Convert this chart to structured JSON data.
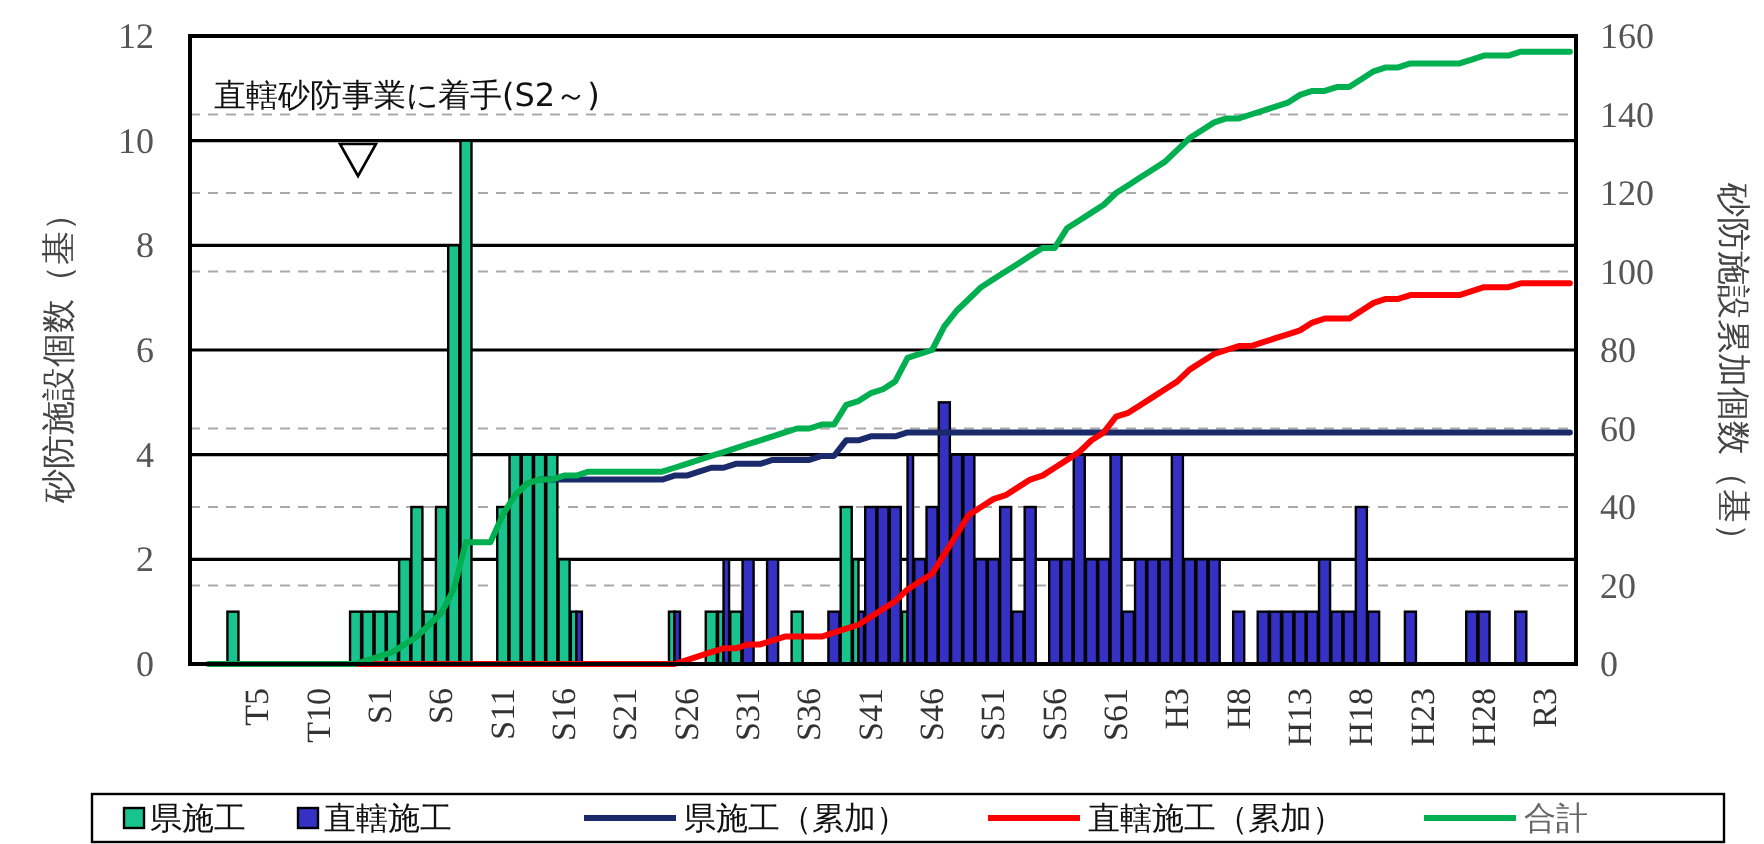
{
  "chart_data": {
    "type": "bar",
    "categories": [
      null,
      null,
      null,
      null,
      null,
      "T5",
      null,
      null,
      null,
      null,
      "T10",
      null,
      null,
      null,
      null,
      "S1",
      null,
      null,
      null,
      null,
      "S6",
      null,
      null,
      null,
      null,
      "S11",
      null,
      null,
      null,
      null,
      "S16",
      null,
      null,
      null,
      null,
      "S21",
      null,
      null,
      null,
      null,
      "S26",
      null,
      null,
      null,
      null,
      "S31",
      null,
      null,
      null,
      null,
      "S36",
      null,
      null,
      null,
      null,
      "S41",
      null,
      null,
      null,
      null,
      "S46",
      null,
      null,
      null,
      null,
      "S51",
      null,
      null,
      null,
      null,
      "S56",
      null,
      null,
      null,
      null,
      "S61",
      null,
      null,
      null,
      null,
      "H3",
      null,
      null,
      null,
      null,
      "H8",
      null,
      null,
      null,
      null,
      "H13",
      null,
      null,
      null,
      null,
      "H18",
      null,
      null,
      null,
      null,
      "H23",
      null,
      null,
      null,
      null,
      "H28",
      null,
      null,
      null,
      null,
      "R3",
      null,
      null
    ],
    "ylim": [
      0,
      12
    ],
    "yticks": [
      0,
      2,
      4,
      6,
      8,
      10,
      12
    ],
    "y2lim": [
      0,
      160
    ],
    "y2ticks": [
      0,
      20,
      40,
      60,
      80,
      100,
      120,
      140,
      160
    ],
    "ylabel": "砂防施設個数（基）",
    "y2label": "砂防施設累加個数（基）",
    "grid": true,
    "legend": "bottom",
    "annotations": [
      "直轄砂防事業に着手(S2～)"
    ],
    "series": [
      {
        "name": "県施工",
        "color": "#19c38e",
        "values": [
          0,
          0,
          0,
          1,
          0,
          0,
          0,
          0,
          0,
          0,
          0,
          0,
          0,
          1,
          1,
          1,
          1,
          2,
          3,
          1,
          3,
          8,
          10,
          0,
          0,
          3,
          4,
          4,
          4,
          4,
          2,
          1,
          0,
          0,
          0,
          0,
          0,
          0,
          0,
          1,
          0,
          0,
          1,
          1,
          1,
          0,
          0,
          0,
          0,
          1,
          0,
          0,
          0,
          3,
          2,
          0,
          0,
          0,
          1,
          0,
          0,
          0,
          0,
          0,
          0,
          0,
          0,
          0,
          0,
          0,
          0,
          0,
          0,
          0,
          0,
          0,
          0,
          0,
          0,
          0,
          0,
          0,
          0,
          0,
          0,
          0,
          0,
          0,
          0,
          0,
          0,
          0,
          0,
          0,
          0,
          0,
          0,
          0,
          0,
          0,
          0,
          0,
          0,
          0,
          0,
          0,
          0,
          0,
          0,
          0,
          0,
          0,
          0
        ]
      },
      {
        "name": "直轄施工",
        "color": "#3431c4",
        "values": [
          0,
          0,
          0,
          0,
          0,
          0,
          0,
          0,
          0,
          0,
          0,
          0,
          0,
          0,
          0,
          0,
          0,
          0,
          0,
          0,
          0,
          0,
          0,
          0,
          0,
          0,
          0,
          0,
          0,
          0,
          0,
          1,
          0,
          0,
          0,
          0,
          0,
          0,
          0,
          1,
          0,
          0,
          0,
          2,
          0,
          2,
          0,
          2,
          0,
          0,
          0,
          0,
          1,
          0,
          1,
          3,
          3,
          3,
          4,
          2,
          3,
          5,
          4,
          4,
          2,
          2,
          3,
          1,
          3,
          0,
          2,
          2,
          4,
          2,
          2,
          4,
          1,
          2,
          2,
          2,
          4,
          2,
          2,
          2,
          0,
          1,
          0,
          1,
          1,
          1,
          1,
          1,
          2,
          1,
          1,
          3,
          1,
          0,
          0,
          1,
          0,
          0,
          0,
          0,
          1,
          1,
          0,
          0,
          1,
          0,
          0,
          0,
          0
        ]
      },
      {
        "name": "県施工（累加）",
        "type": "line",
        "axis": "y2",
        "color": "#1b2a6b",
        "values": [
          null,
          null,
          null,
          null,
          null,
          null,
          null,
          null,
          null,
          null,
          null,
          null,
          null,
          null,
          null,
          null,
          null,
          null,
          null,
          null,
          null,
          null,
          null,
          null,
          null,
          null,
          null,
          null,
          47,
          47,
          47,
          47,
          47,
          47,
          47,
          47,
          47,
          47,
          47,
          48,
          48,
          49,
          50,
          50,
          51,
          51,
          51,
          52,
          52,
          52,
          52,
          53,
          53,
          57,
          57,
          58,
          58,
          58,
          59,
          59,
          59,
          59,
          59,
          59,
          59,
          59,
          59,
          59,
          59,
          59,
          59,
          59,
          59,
          59,
          59,
          59,
          59,
          59,
          59,
          59,
          59,
          59,
          59,
          59,
          59,
          59,
          59,
          59,
          59,
          59,
          59,
          59,
          59,
          59,
          59,
          59,
          59,
          59,
          59,
          59,
          59,
          59,
          59,
          59,
          59,
          59,
          59,
          59,
          59,
          59,
          59,
          59,
          59
        ]
      },
      {
        "name": "直轄施工（累加）",
        "type": "line",
        "axis": "y2",
        "color": "#ff0000",
        "values": [
          null,
          null,
          null,
          null,
          null,
          null,
          null,
          null,
          null,
          null,
          null,
          null,
          0,
          0,
          0,
          0,
          0,
          0,
          0,
          0,
          0,
          0,
          0,
          0,
          0,
          0,
          0,
          0,
          0,
          0,
          0,
          0,
          0,
          0,
          0,
          0,
          0,
          0,
          0,
          0,
          1,
          2,
          3,
          4,
          4,
          5,
          5,
          6,
          7,
          7,
          7,
          7,
          8,
          9,
          10,
          12,
          14,
          16,
          19,
          21,
          23,
          28,
          33,
          38,
          40,
          42,
          43,
          45,
          47,
          48,
          50,
          52,
          54,
          57,
          59,
          63,
          64,
          66,
          68,
          70,
          72,
          75,
          77,
          79,
          80,
          81,
          81,
          82,
          83,
          84,
          85,
          87,
          88,
          88,
          88,
          90,
          92,
          93,
          93,
          94,
          94,
          94,
          94,
          94,
          95,
          96,
          96,
          96,
          97,
          97,
          97,
          97,
          97
        ]
      },
      {
        "name": "合計",
        "type": "line",
        "axis": "y2",
        "color": "#00b050",
        "values": [
          null,
          0,
          0,
          0,
          0,
          0,
          0,
          0,
          0,
          0,
          0,
          0,
          0,
          0,
          1,
          2,
          3,
          5,
          7,
          10,
          13,
          19,
          31,
          31,
          31,
          38,
          43,
          46,
          47,
          47,
          48,
          48,
          49,
          49,
          49,
          49,
          49,
          49,
          49,
          50,
          51,
          52,
          53,
          54,
          55,
          56,
          57,
          58,
          59,
          60,
          60,
          61,
          61,
          66,
          67,
          69,
          70,
          72,
          78,
          79,
          80,
          86,
          90,
          93,
          96,
          98,
          100,
          102,
          104,
          106,
          106,
          111,
          113,
          115,
          117,
          120,
          122,
          124,
          126,
          128,
          131,
          134,
          136,
          138,
          139,
          139,
          140,
          141,
          142,
          143,
          145,
          146,
          146,
          147,
          147,
          149,
          151,
          152,
          152,
          153,
          153,
          153,
          153,
          153,
          154,
          155,
          155,
          155,
          156,
          156,
          156,
          156,
          156
        ]
      }
    ]
  }
}
